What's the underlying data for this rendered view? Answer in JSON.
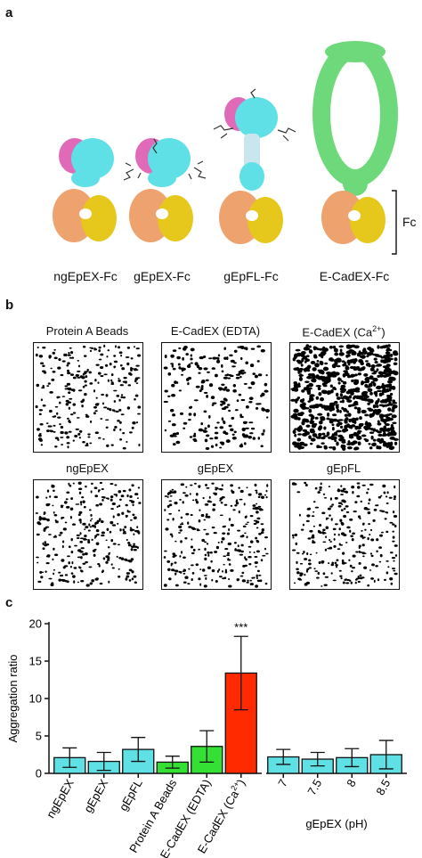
{
  "panels": {
    "a": "a",
    "b": "b",
    "c": "c"
  },
  "panel_a": {
    "molecules": [
      "ngEpEX-Fc",
      "gEpEX-Fc",
      "gEpFL-Fc",
      "E-CadEX-Fc"
    ],
    "fc_label": "Fc",
    "colors": {
      "ep_a": "#e06ab8",
      "ep_b": "#5ee0e6",
      "fc_a": "#eea26e",
      "fc_b": "#e6c81c",
      "cad": "#6ed97a",
      "tm": "#c9e6ee"
    }
  },
  "panel_b": {
    "titles": [
      "Protein A Beads",
      "E-CadEX (EDTA)",
      "E-CadEX (Ca",
      "ngEpEX",
      "gEpEX",
      "gEpFL"
    ],
    "title_sup": "2+",
    "title_suffix": ")"
  },
  "chart_data": {
    "type": "bar",
    "ylabel": "Aggregation ratio",
    "ylim": [
      0,
      20
    ],
    "yticks": [
      0,
      5,
      10,
      15,
      20
    ],
    "groups": [
      {
        "categories": [
          "ngEpEX",
          "gEpEX",
          "gEpFL",
          "Protein A Beads",
          "E-CadEX (EDTA)",
          "E-CadEX (Ca2+)"
        ],
        "tick_labels": [
          "ngEpEX",
          "gEpEX",
          "gEpFL",
          "Protein A Beads",
          "E-CadEX (EDTA)",
          "E-CadEX (Ca"
        ],
        "values": [
          2.1,
          1.6,
          3.2,
          1.5,
          3.6,
          13.4
        ],
        "errors": [
          1.3,
          1.2,
          1.6,
          0.8,
          2.1,
          4.9
        ],
        "colors": [
          "#5fe0e4",
          "#5fe0e4",
          "#5fe0e4",
          "#33e033",
          "#33e033",
          "#ff2a00"
        ]
      },
      {
        "xlabel": "gEpEX (pH)",
        "categories": [
          "7",
          "7.5",
          "8",
          "8.5"
        ],
        "tick_labels": [
          "7",
          "7.5",
          "8",
          "8.5"
        ],
        "values": [
          2.2,
          1.9,
          2.1,
          2.5
        ],
        "errors": [
          1.0,
          0.9,
          1.2,
          1.9
        ],
        "colors": [
          "#5fe0e4",
          "#5fe0e4",
          "#5fe0e4",
          "#5fe0e4"
        ]
      }
    ],
    "annotations": [
      {
        "text": "***",
        "category": "E-CadEX (Ca2+)"
      }
    ],
    "sup": "2+",
    "sup_suffix": ")"
  }
}
